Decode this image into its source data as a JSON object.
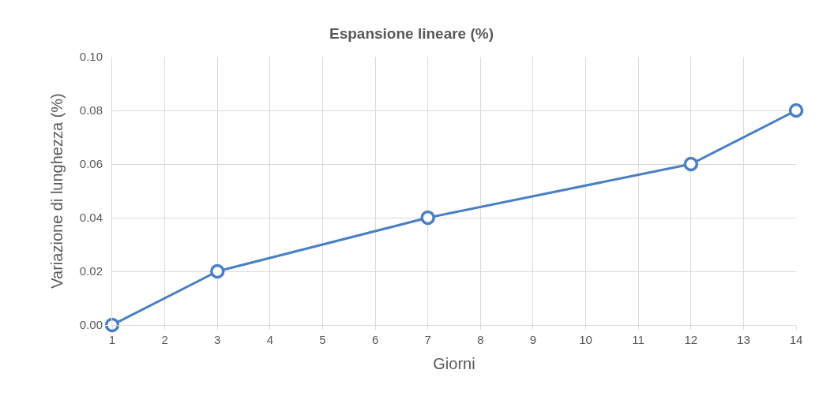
{
  "chart_data": {
    "type": "line",
    "title": "Espansione lineare (%)",
    "xlabel": "Giorni",
    "ylabel": "Variazione di lunghezza (%)",
    "x": [
      1,
      3,
      7,
      12,
      14
    ],
    "series": [
      {
        "color": "#4a7fc1",
        "values": [
          0.0,
          0.02,
          0.04,
          0.06,
          0.08
        ]
      }
    ],
    "xlim": [
      1,
      14
    ],
    "xticks": [
      1,
      2,
      3,
      4,
      5,
      6,
      7,
      8,
      9,
      10,
      11,
      12,
      13,
      14
    ],
    "ylim": [
      0,
      0.1
    ],
    "yticks": [
      {
        "value": 0,
        "label": "0.00"
      },
      {
        "value": 0.02,
        "label": "0.02"
      },
      {
        "value": 0.04,
        "label": "0.04"
      },
      {
        "value": 0.06,
        "label": "0.06"
      },
      {
        "value": 0.08,
        "label": "0.08"
      },
      {
        "value": 0.1,
        "label": "0.10"
      }
    ],
    "grid": true,
    "legend": false,
    "marker": "circle",
    "line_style": "solid"
  }
}
